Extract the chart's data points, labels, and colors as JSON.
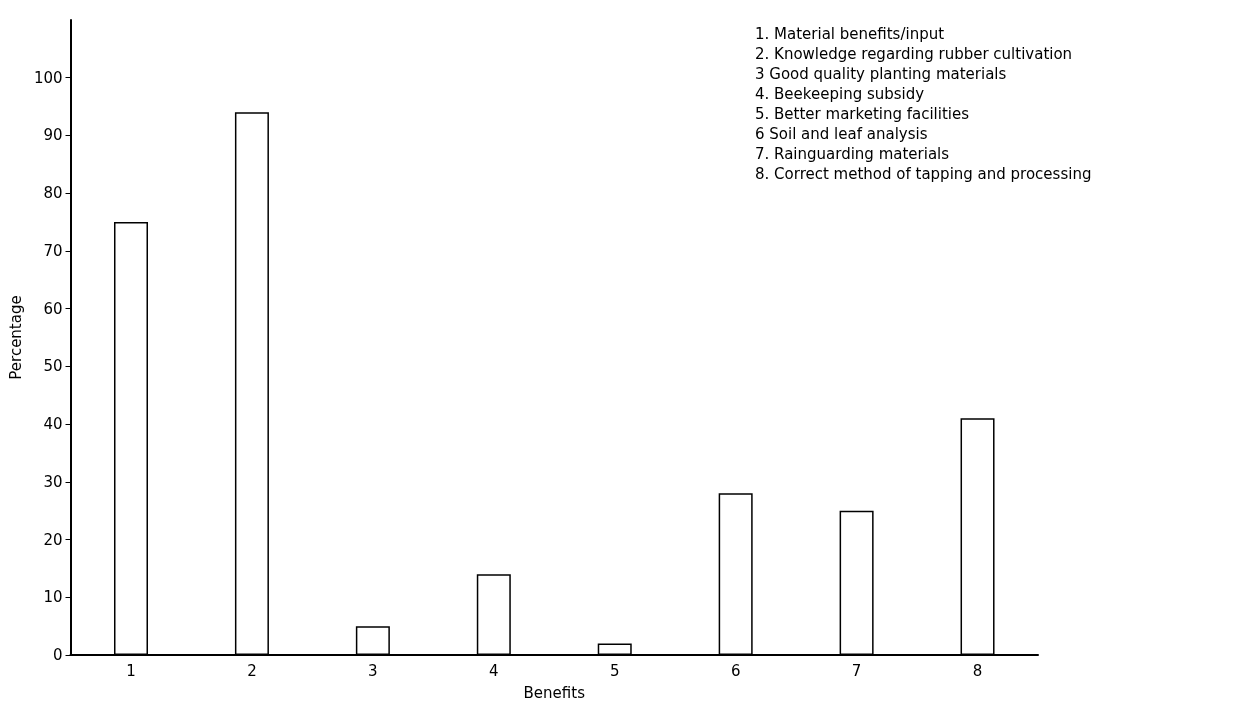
{
  "chart_data": {
    "type": "bar",
    "xlabel": "Benefits",
    "ylabel": "Percentage",
    "categories": [
      "1",
      "2",
      "3",
      "4",
      "5",
      "6",
      "7",
      "8"
    ],
    "values": [
      75,
      94,
      5,
      14,
      2,
      28,
      25,
      41
    ],
    "color": "#ffffff",
    "ylim": [
      0,
      110
    ],
    "yticks": [
      0,
      10,
      20,
      30,
      40,
      50,
      60,
      70,
      80,
      90,
      100
    ],
    "grid": false,
    "annotations": [
      "1. Material benefits/input",
      "2. Knowledge regarding rubber cultivation",
      "3 Good quality planting materials",
      "4. Beekeeping subsidy",
      "5. Better marketing facilities",
      "6 Soil and leaf analysis",
      "7. Rainguarding materials",
      "8. Correct method of tapping and processing"
    ]
  }
}
